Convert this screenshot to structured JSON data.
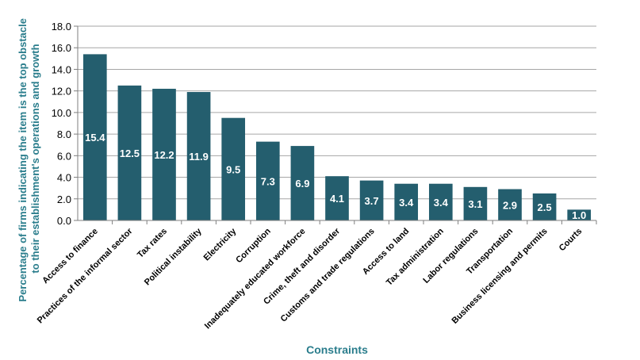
{
  "chart_data": {
    "type": "bar",
    "title": "",
    "xlabel": "Constraints",
    "ylabel": "Percentage of firms indicating the item is the top obstacle to their establishment's operations and growth",
    "ylabel_lines": [
      "Percentage of firms indicating the item is the top obstacle",
      "to their establishment's operations and growth"
    ],
    "ylim": [
      0,
      18
    ],
    "yticks": [
      "0.0",
      "2.0",
      "4.0",
      "6.0",
      "8.0",
      "10.0",
      "12.0",
      "14.0",
      "16.0",
      "18.0"
    ],
    "categories": [
      "Access to finance",
      "Practices of the informal sector",
      "Tax rates",
      "Political instability",
      "Electricity",
      "Corruption",
      "Inadequately educated workforce",
      "Crime, theft and disorder",
      "Customs and trade regulations",
      "Access to land",
      "Tax administration",
      "Labor regulations",
      "Transportation",
      "Business licensing and permits",
      "Courts"
    ],
    "values": [
      15.4,
      12.5,
      12.2,
      11.9,
      9.5,
      7.3,
      6.9,
      4.1,
      3.7,
      3.4,
      3.4,
      3.1,
      2.9,
      2.5,
      1.0
    ],
    "value_labels": [
      "15.4",
      "12.5",
      "12.2",
      "11.9",
      "9.5",
      "7.3",
      "6.9",
      "4.1",
      "3.7",
      "3.4",
      "3.4",
      "3.1",
      "2.9",
      "2.5",
      "1.0"
    ],
    "grid": true,
    "legend": "none",
    "colors": {
      "bar": "#245e6e",
      "bar_label": "#ffffff",
      "axis_title": "#2a7d8c",
      "grid": "#a6a6a6",
      "axis": "#7f7f7f"
    }
  }
}
